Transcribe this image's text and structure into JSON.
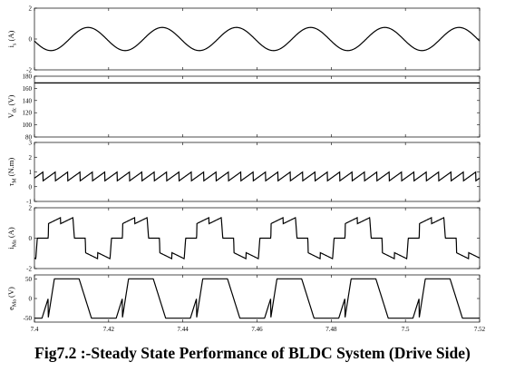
{
  "caption": "Fig7.2 :-Steady State Performance of BLDC System (Drive Side)",
  "chart_data": {
    "type": "line",
    "x_axis": {
      "range": [
        7.4,
        7.52
      ],
      "ticks": [
        "7.4",
        "7.42",
        "7.44",
        "7.46",
        "7.48",
        "7.5",
        "7.52"
      ],
      "tick_values": [
        7.4,
        7.42,
        7.44,
        7.46,
        7.48,
        7.5,
        7.52
      ]
    },
    "grid": false,
    "line_color": "#000000",
    "panels": [
      {
        "ylabel_main": "i",
        "ylabel_sub": "s",
        "ylabel_unit": "(A)",
        "ylim": [
          -2,
          2
        ],
        "yticks": [
          "2",
          "0",
          "-2"
        ],
        "ytick_values": [
          2,
          0,
          -2
        ],
        "waveform": "sine",
        "period": 0.02,
        "amplitude": 0.75,
        "offset": 0,
        "phase_deg": 190
      },
      {
        "ylabel_main": "V",
        "ylabel_sub": "dc",
        "ylabel_unit": "(V)",
        "ylim": [
          80,
          180
        ],
        "yticks": [
          "180",
          "160",
          "140",
          "120",
          "100",
          "80"
        ],
        "ytick_values": [
          180,
          160,
          140,
          120,
          100,
          80
        ],
        "waveform": "constant",
        "value": 169
      },
      {
        "ylabel_main": "τ",
        "ylabel_sub": "M",
        "ylabel_unit": "(N.m)",
        "ylim": [
          -1,
          3
        ],
        "yticks": [
          "3",
          "2",
          "1",
          "0",
          "-1"
        ],
        "ytick_values": [
          3,
          2,
          1,
          0,
          -1
        ],
        "waveform": "sawtooth",
        "period": 0.0033333,
        "min": 0.4,
        "max": 1.0,
        "offset_phase": 0.3
      },
      {
        "ylabel_main": "i",
        "ylabel_sub": "Ma",
        "ylabel_unit": "(A)",
        "ylim": [
          -2,
          2
        ],
        "yticks": [
          "2",
          "0",
          "-2"
        ],
        "ytick_values": [
          2,
          0,
          -2
        ],
        "waveform": "bldc_current",
        "period": 0.02,
        "phase_shift": 0.0037,
        "pulse_peak": 1.35,
        "pulse_dip": 0.95
      },
      {
        "ylabel_main": "e",
        "ylabel_sub": "Ma",
        "ylabel_unit": "(V)",
        "ylim": [
          -60,
          60
        ],
        "yticks": [
          "50",
          "0",
          "-50"
        ],
        "ytick_values": [
          50,
          0,
          -50
        ],
        "waveform": "trapezoid",
        "period": 0.02,
        "phase_shift": 0.0037,
        "amplitude": 50
      }
    ]
  }
}
